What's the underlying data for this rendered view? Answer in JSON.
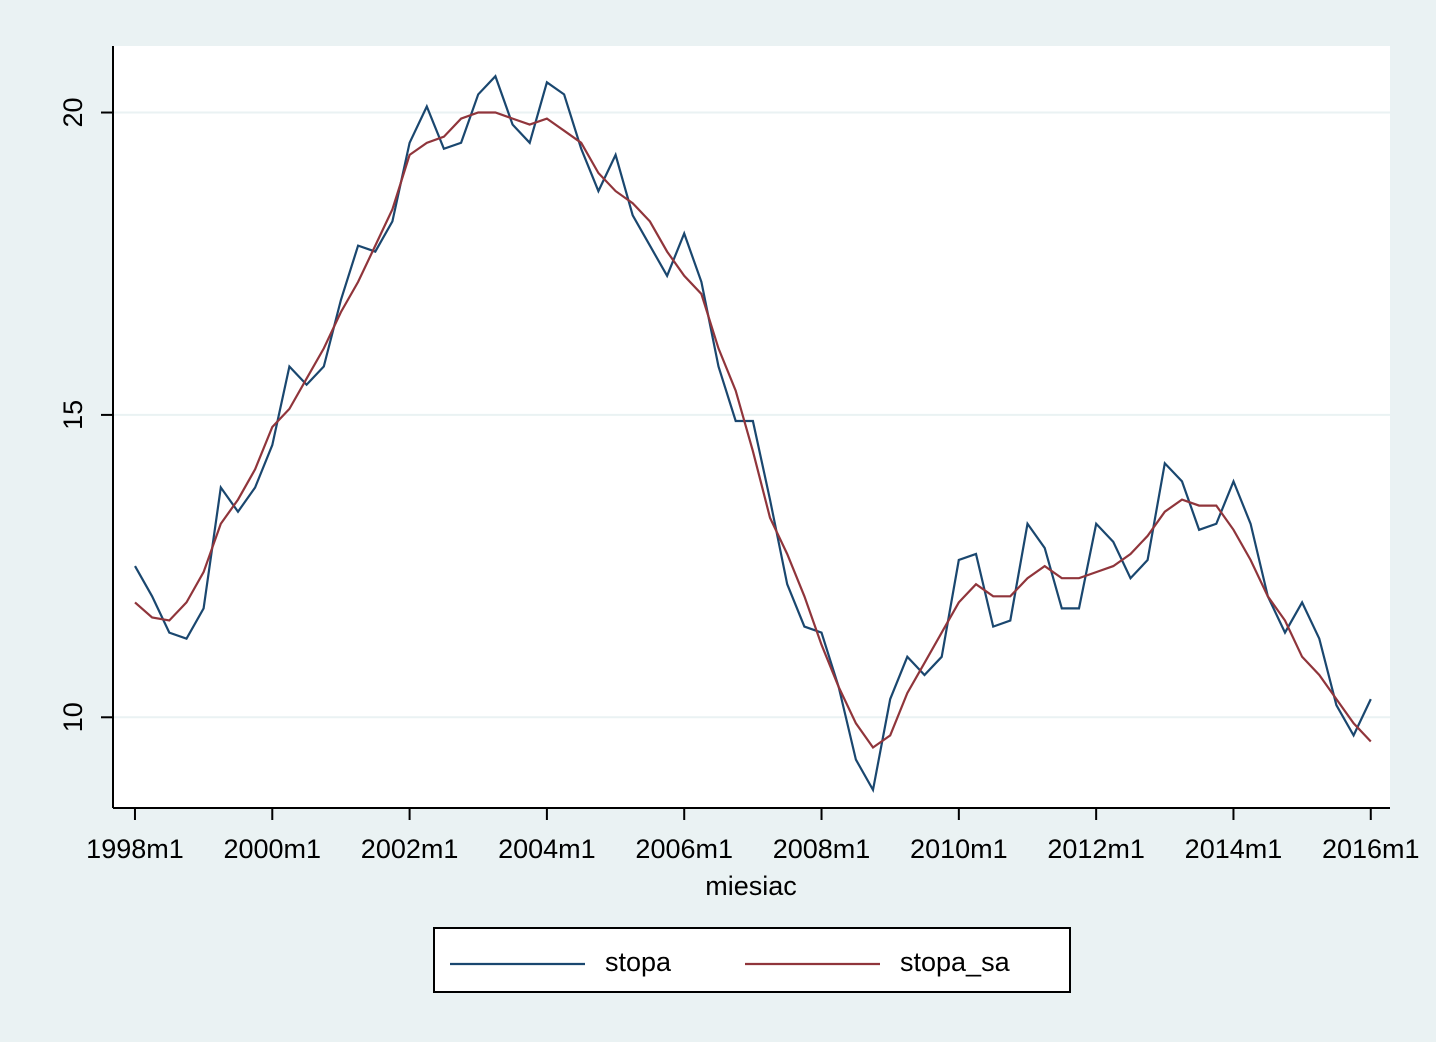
{
  "chart_data": {
    "type": "line",
    "xlabel": "miesiac",
    "x": [
      1998,
      1998.25,
      1998.5,
      1998.75,
      1999,
      1999.25,
      1999.5,
      1999.75,
      2000,
      2000.25,
      2000.5,
      2000.75,
      2001,
      2001.25,
      2001.5,
      2001.75,
      2002,
      2002.25,
      2002.5,
      2002.75,
      2003,
      2003.25,
      2003.5,
      2003.75,
      2004,
      2004.25,
      2004.5,
      2004.75,
      2005,
      2005.25,
      2005.5,
      2005.75,
      2006,
      2006.25,
      2006.5,
      2006.75,
      2007,
      2007.25,
      2007.5,
      2007.75,
      2008,
      2008.25,
      2008.5,
      2008.75,
      2009,
      2009.25,
      2009.5,
      2009.75,
      2010,
      2010.25,
      2010.5,
      2010.75,
      2011,
      2011.25,
      2011.5,
      2011.75,
      2012,
      2012.25,
      2012.5,
      2012.75,
      2013,
      2013.25,
      2013.5,
      2013.75,
      2014,
      2014.25,
      2014.5,
      2014.75,
      2015,
      2015.25,
      2015.5,
      2015.75,
      2016
    ],
    "series": [
      {
        "name": "stopa",
        "color": "#1a476f",
        "values": [
          12.5,
          12.0,
          11.4,
          11.3,
          11.8,
          13.8,
          13.4,
          13.8,
          14.5,
          15.8,
          15.5,
          15.8,
          16.9,
          17.8,
          17.7,
          18.2,
          19.5,
          20.1,
          19.4,
          19.5,
          20.3,
          20.6,
          19.8,
          19.5,
          20.5,
          20.3,
          19.4,
          18.7,
          19.3,
          18.3,
          17.8,
          17.3,
          18.0,
          17.2,
          15.8,
          14.9,
          14.9,
          13.6,
          12.2,
          11.5,
          11.4,
          10.5,
          9.3,
          8.8,
          10.3,
          11.0,
          10.7,
          11.0,
          12.6,
          12.7,
          11.5,
          11.6,
          13.2,
          12.8,
          11.8,
          11.8,
          13.2,
          12.9,
          12.3,
          12.6,
          14.2,
          13.9,
          13.1,
          13.2,
          13.9,
          13.2,
          12.0,
          11.4,
          11.9,
          11.3,
          10.2,
          9.7,
          10.3
        ]
      },
      {
        "name": "stopa_sa",
        "color": "#90353b",
        "values": [
          11.9,
          11.65,
          11.6,
          11.9,
          12.4,
          13.2,
          13.6,
          14.1,
          14.8,
          15.1,
          15.6,
          16.1,
          16.7,
          17.2,
          17.8,
          18.4,
          19.3,
          19.5,
          19.6,
          19.9,
          20.0,
          20.0,
          19.9,
          19.8,
          19.9,
          19.7,
          19.5,
          19.0,
          18.7,
          18.5,
          18.2,
          17.7,
          17.3,
          17.0,
          16.1,
          15.4,
          14.4,
          13.3,
          12.7,
          12.0,
          11.2,
          10.5,
          9.9,
          9.5,
          9.7,
          10.4,
          10.9,
          11.4,
          11.9,
          12.2,
          12.0,
          12.0,
          12.3,
          12.5,
          12.3,
          12.3,
          12.4,
          12.5,
          12.7,
          13.0,
          13.4,
          13.6,
          13.5,
          13.5,
          13.1,
          12.6,
          12.0,
          11.6,
          11.0,
          10.7,
          10.3,
          9.9,
          9.6
        ]
      }
    ],
    "xlim": [
      1997.68,
      2016.28
    ],
    "xticks": [
      {
        "value": 1998,
        "label": "1998m1"
      },
      {
        "value": 2000,
        "label": "2000m1"
      },
      {
        "value": 2002,
        "label": "2002m1"
      },
      {
        "value": 2004,
        "label": "2004m1"
      },
      {
        "value": 2006,
        "label": "2006m1"
      },
      {
        "value": 2008,
        "label": "2008m1"
      },
      {
        "value": 2010,
        "label": "2010m1"
      },
      {
        "value": 2012,
        "label": "2012m1"
      },
      {
        "value": 2014,
        "label": "2014m1"
      },
      {
        "value": 2016,
        "label": "2016m1"
      }
    ],
    "ylim": [
      8.5,
      21.1
    ],
    "yticks": [
      10,
      15,
      20
    ],
    "grid": true,
    "legend": "bottom"
  }
}
